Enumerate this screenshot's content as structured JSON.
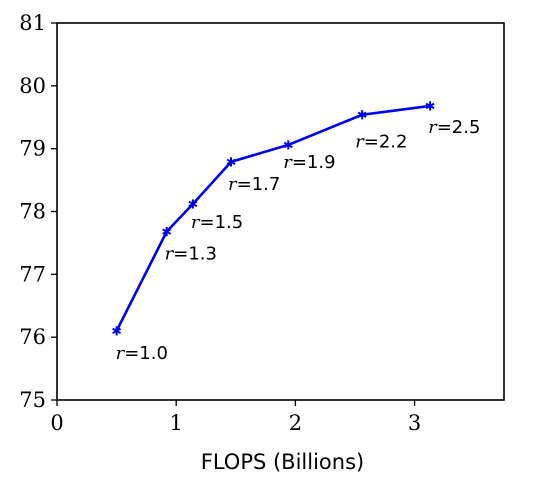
{
  "chart_data": {
    "type": "line",
    "title": "",
    "xlabel": "FLOPS (Billions)",
    "ylabel": "",
    "xlim": [
      0,
      3.75
    ],
    "ylim": [
      75,
      81
    ],
    "xticks": [
      0,
      1,
      2,
      3
    ],
    "yticks": [
      75,
      76,
      77,
      78,
      79,
      80,
      81
    ],
    "xtick_labels": [
      "0",
      "1",
      "2",
      "3"
    ],
    "ytick_labels": [
      "75",
      "76",
      "77",
      "78",
      "79",
      "80",
      "81"
    ],
    "grid": false,
    "legend": "none",
    "series": [
      {
        "color": "#0000ee",
        "marker": "star",
        "x": [
          0.5,
          0.92,
          1.14,
          1.46,
          1.94,
          2.56,
          3.13
        ],
        "y": [
          76.1,
          77.68,
          78.12,
          78.79,
          79.06,
          79.54,
          79.68
        ],
        "point_labels": [
          {
            "var": "r",
            "text": "=1.0"
          },
          {
            "var": "r",
            "text": "=1.3"
          },
          {
            "var": "r",
            "text": "=1.5"
          },
          {
            "var": "r",
            "text": "=1.7"
          },
          {
            "var": "r",
            "text": "=1.9"
          },
          {
            "var": "r",
            "text": "=2.2"
          },
          {
            "var": "r",
            "text": "=2.5"
          }
        ]
      }
    ]
  }
}
